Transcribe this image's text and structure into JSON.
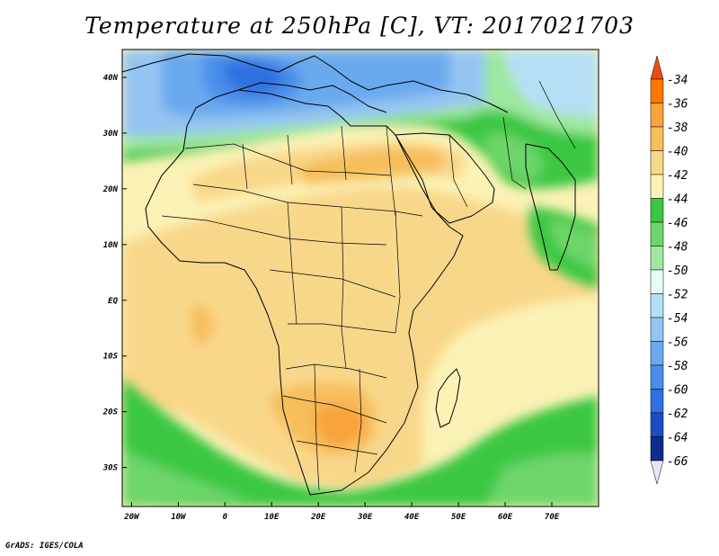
{
  "title": "Temperature at 250hPa [C], VT: 2017021703",
  "credit": "GrADS: IGES/COLA",
  "map": {
    "projection": "latlon",
    "lon_range": [
      -22,
      80
    ],
    "lat_range": [
      -37,
      45
    ],
    "lon_ticks": [
      {
        "value": -20,
        "label": "20W"
      },
      {
        "value": -10,
        "label": "10W"
      },
      {
        "value": 0,
        "label": "0"
      },
      {
        "value": 10,
        "label": "10E"
      },
      {
        "value": 20,
        "label": "20E"
      },
      {
        "value": 30,
        "label": "30E"
      },
      {
        "value": 40,
        "label": "40E"
      },
      {
        "value": 50,
        "label": "50E"
      },
      {
        "value": 60,
        "label": "60E"
      },
      {
        "value": 70,
        "label": "70E"
      }
    ],
    "lat_ticks": [
      {
        "value": 40,
        "label": "40N"
      },
      {
        "value": 30,
        "label": "30N"
      },
      {
        "value": 20,
        "label": "20N"
      },
      {
        "value": 10,
        "label": "10N"
      },
      {
        "value": 0,
        "label": "EQ"
      },
      {
        "value": -10,
        "label": "10S"
      },
      {
        "value": -20,
        "label": "20S"
      },
      {
        "value": -30,
        "label": "30S"
      }
    ]
  },
  "colorbar": {
    "levels": [
      -34,
      -36,
      -38,
      -40,
      -42,
      -44,
      -46,
      -48,
      -50,
      -52,
      -54,
      -56,
      -58,
      -60,
      -62,
      -64,
      -66
    ],
    "colors": [
      "#f04a10",
      "#ff7800",
      "#f9a33a",
      "#f7be5c",
      "#f9d78a",
      "#fbf2b6",
      "#3bc742",
      "#6dd56b",
      "#9fe89f",
      "#e4fdf6",
      "#b5dff5",
      "#94c5f2",
      "#6aa9ee",
      "#4a8eea",
      "#2f70e0",
      "#1a4ec4",
      "#0e2b8e",
      "#0a1a6a"
    ]
  }
}
